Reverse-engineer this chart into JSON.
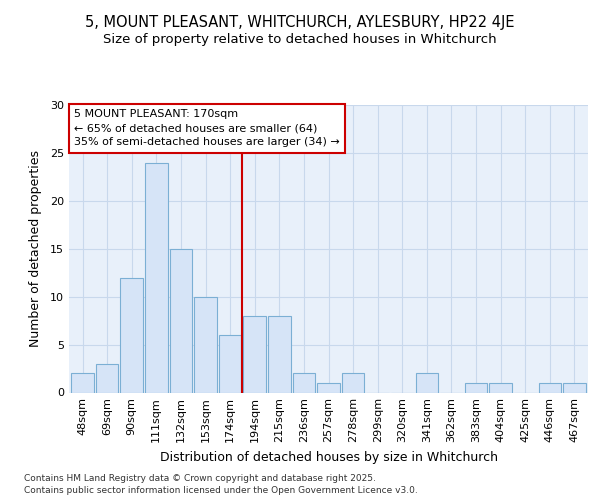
{
  "title_line1": "5, MOUNT PLEASANT, WHITCHURCH, AYLESBURY, HP22 4JE",
  "title_line2": "Size of property relative to detached houses in Whitchurch",
  "xlabel": "Distribution of detached houses by size in Whitchurch",
  "ylabel": "Number of detached properties",
  "bar_labels": [
    "48sqm",
    "69sqm",
    "90sqm",
    "111sqm",
    "132sqm",
    "153sqm",
    "174sqm",
    "194sqm",
    "215sqm",
    "236sqm",
    "257sqm",
    "278sqm",
    "299sqm",
    "320sqm",
    "341sqm",
    "362sqm",
    "383sqm",
    "404sqm",
    "425sqm",
    "446sqm",
    "467sqm"
  ],
  "bar_values": [
    2,
    3,
    12,
    24,
    15,
    10,
    6,
    8,
    8,
    2,
    1,
    2,
    0,
    0,
    2,
    0,
    1,
    1,
    0,
    1,
    1
  ],
  "bar_color": "#d6e4f7",
  "bar_edge_color": "#7bafd4",
  "grid_color": "#c8d8ec",
  "plot_bg_color": "#e8f0fa",
  "fig_bg_color": "#ffffff",
  "vline_x": 6.5,
  "vline_color": "#cc0000",
  "annotation_text": "5 MOUNT PLEASANT: 170sqm\n← 65% of detached houses are smaller (64)\n35% of semi-detached houses are larger (34) →",
  "annotation_box_color": "#ffffff",
  "annotation_box_edge": "#cc0000",
  "ylim": [
    0,
    30
  ],
  "yticks": [
    0,
    5,
    10,
    15,
    20,
    25,
    30
  ],
  "footer_text": "Contains HM Land Registry data © Crown copyright and database right 2025.\nContains public sector information licensed under the Open Government Licence v3.0.",
  "title_fontsize": 10.5,
  "subtitle_fontsize": 9.5,
  "axis_label_fontsize": 9,
  "tick_fontsize": 8,
  "annotation_fontsize": 8,
  "footer_fontsize": 6.5
}
